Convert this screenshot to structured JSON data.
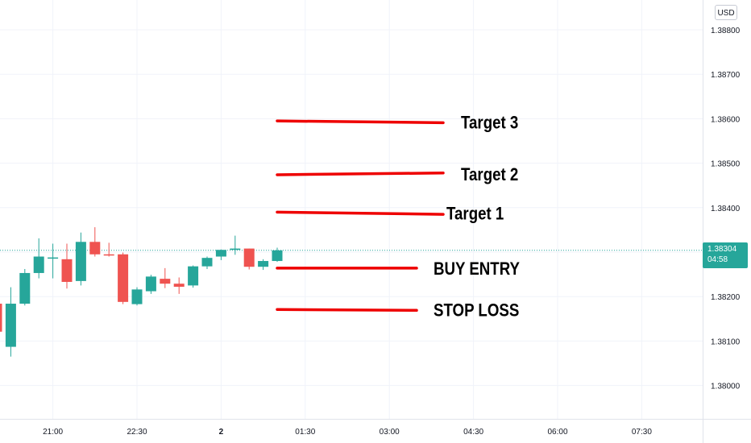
{
  "currency": "USD",
  "last_price": "1.38304",
  "countdown": "04:58",
  "colors": {
    "up": "#26a69a",
    "down": "#ef5350",
    "annotation": "#ee0000",
    "grid": "#f0f3fa",
    "axis_text": "#131722"
  },
  "chart_data": {
    "type": "candlestick",
    "y_ticks": [
      "1.38000",
      "1.38100",
      "1.38200",
      "1.38300",
      "1.38400",
      "1.38500",
      "1.38600",
      "1.38700",
      "1.38800"
    ],
    "ylim": [
      1.3795,
      1.3888
    ],
    "x_ticks": [
      "21:00",
      "22:30",
      "2",
      "01:30",
      "03:00",
      "04:30",
      "06:00",
      "07:30"
    ],
    "x_tick_index": [
      4,
      10,
      16,
      22,
      28,
      34,
      40,
      46
    ],
    "candles": [
      {
        "o": 1.38184,
        "h": 1.38196,
        "l": 1.38075,
        "c": 1.38121
      },
      {
        "o": 1.38087,
        "h": 1.38221,
        "l": 1.38065,
        "c": 1.38184
      },
      {
        "o": 1.38184,
        "h": 1.38262,
        "l": 1.3818,
        "c": 1.38253
      },
      {
        "o": 1.38253,
        "h": 1.38331,
        "l": 1.38241,
        "c": 1.3829
      },
      {
        "o": 1.38286,
        "h": 1.38319,
        "l": 1.38241,
        "c": 1.38288
      },
      {
        "o": 1.38284,
        "h": 1.38319,
        "l": 1.38218,
        "c": 1.38233
      },
      {
        "o": 1.38235,
        "h": 1.38344,
        "l": 1.38225,
        "c": 1.38323
      },
      {
        "o": 1.38323,
        "h": 1.38356,
        "l": 1.3829,
        "c": 1.38295
      },
      {
        "o": 1.38295,
        "h": 1.38321,
        "l": 1.3829,
        "c": 1.38293
      },
      {
        "o": 1.38295,
        "h": 1.38299,
        "l": 1.38183,
        "c": 1.38188
      },
      {
        "o": 1.38183,
        "h": 1.38221,
        "l": 1.3818,
        "c": 1.38216
      },
      {
        "o": 1.38212,
        "h": 1.38249,
        "l": 1.38206,
        "c": 1.38245
      },
      {
        "o": 1.3824,
        "h": 1.38264,
        "l": 1.38219,
        "c": 1.38229
      },
      {
        "o": 1.38229,
        "h": 1.38243,
        "l": 1.38206,
        "c": 1.38222
      },
      {
        "o": 1.38225,
        "h": 1.3827,
        "l": 1.3822,
        "c": 1.38268
      },
      {
        "o": 1.38268,
        "h": 1.3829,
        "l": 1.38262,
        "c": 1.38287
      },
      {
        "o": 1.3829,
        "h": 1.38306,
        "l": 1.38282,
        "c": 1.38305
      },
      {
        "o": 1.38305,
        "h": 1.38337,
        "l": 1.38294,
        "c": 1.38308
      },
      {
        "o": 1.38308,
        "h": 1.38308,
        "l": 1.38261,
        "c": 1.38267
      },
      {
        "o": 1.38267,
        "h": 1.38284,
        "l": 1.3826,
        "c": 1.3828
      },
      {
        "o": 1.3828,
        "h": 1.3831,
        "l": 1.38278,
        "c": 1.38304
      }
    ],
    "last_price": 1.38304,
    "annotations": [
      {
        "label": "Target 3",
        "y_start": 1.38595,
        "y_end": 1.38591
      },
      {
        "label": "Target 2",
        "y_start": 1.38474,
        "y_end": 1.38478
      },
      {
        "label": "Target 1",
        "y_start": 1.3839,
        "y_end": 1.38385
      },
      {
        "label": "BUY ENTRY",
        "y_start": 1.38264,
        "y_end": 1.38264
      },
      {
        "label": "STOP LOSS",
        "y_start": 1.38171,
        "y_end": 1.38169
      }
    ]
  }
}
